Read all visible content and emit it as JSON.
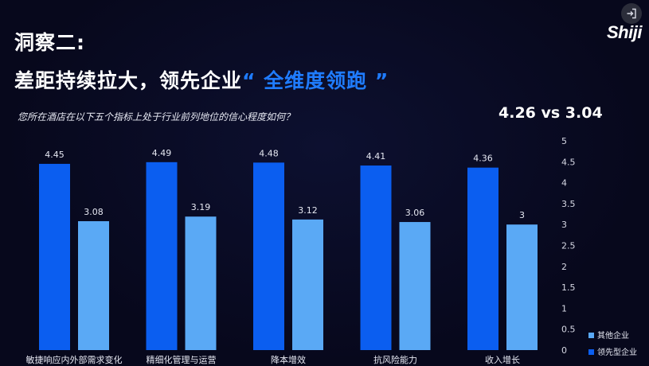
{
  "slide": {
    "title_line1": "洞察二:",
    "title_line2_prefix": "差距持续拉大，领先企业",
    "title_line2_highlight": "“ 全维度领跑 ”",
    "question": "您所在酒店在以下五个指标上处于行业前列地位的信心程度如何？",
    "comparison": "4.26 vs 3.04",
    "logo": "Shiji",
    "exit_icon": "exit-icon"
  },
  "colors": {
    "leading": "#0b5ef0",
    "others": "#5aa9f5",
    "highlight": "#1f7cff",
    "background": "#07081c"
  },
  "chart_data": {
    "type": "bar",
    "categories": [
      "敏捷响应内外部需求变化",
      "精细化管理与运营",
      "降本增效",
      "抗风险能力",
      "收入增长"
    ],
    "series": [
      {
        "name": "领先型企业",
        "values": [
          4.45,
          4.49,
          4.48,
          4.41,
          4.36
        ],
        "labels": [
          "4.45",
          "4.49",
          "4.48",
          "4.41",
          "4.36"
        ]
      },
      {
        "name": "其他企业",
        "values": [
          3.08,
          3.19,
          3.12,
          3.06,
          3.0
        ],
        "labels": [
          "3.08",
          "3.19",
          "3.12",
          "3.06",
          "3"
        ]
      }
    ],
    "yticks": [
      "0",
      "0.5",
      "1",
      "1.5",
      "2",
      "2.5",
      "3",
      "3.5",
      "4",
      "4.5",
      "5"
    ],
    "ylim": [
      0,
      5
    ],
    "y_axis_side": "right",
    "grid": false,
    "legend": {
      "position": "bottom-right",
      "entries": [
        "其他企业",
        "领先型企业"
      ]
    }
  }
}
